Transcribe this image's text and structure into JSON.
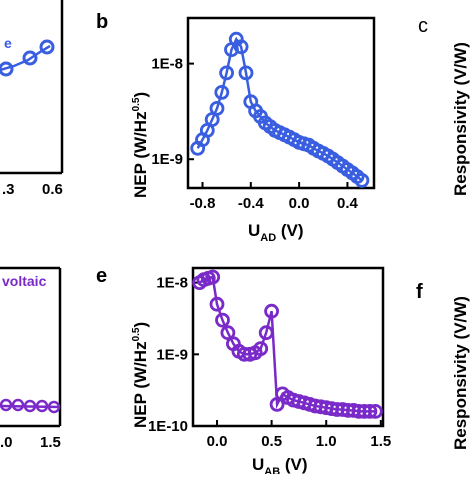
{
  "colors": {
    "blue": "#3a5ee0",
    "purple": "#7a2ac8"
  },
  "panels": {
    "a_fragment": {
      "tick_labels": [
        ".3",
        "0.6"
      ],
      "legend_text": "e"
    },
    "b": {
      "letter": "b"
    },
    "c_fragment": {
      "letter": "c",
      "ylabel": "Responsivity (V/W)"
    },
    "d_fragment": {
      "tick_labels": ".0",
      "tick_right": "1.5",
      "legend_text": "voltaic"
    },
    "e": {
      "letter": "e"
    },
    "f_fragment": {
      "letter": "f",
      "ylabel": "Responsivity (V/W)"
    }
  },
  "chart_data": [
    {
      "type": "line",
      "panel": "b",
      "ylabel_main": "NEP (W/Hz",
      "ylabel_sup": "0.5",
      "ylabel_end": ")",
      "xlabel_main": "U",
      "xlabel_sub": "AD",
      "xlabel_end": " (V)",
      "yscale": "log",
      "xlim": [
        -0.92,
        0.62
      ],
      "ylim": [
        5e-10,
        3e-08
      ],
      "x_ticks": [
        -0.8,
        -0.4,
        0.0,
        0.4
      ],
      "x_tick_labels": [
        "-0.8",
        "-0.4",
        "0.0",
        "0.4"
      ],
      "y_ticks": [
        1e-08,
        1e-09
      ],
      "y_tick_labels": [
        "1E-8",
        "1E-9"
      ],
      "color": "#3a5ee0",
      "x": [
        -0.84,
        -0.8,
        -0.76,
        -0.72,
        -0.68,
        -0.64,
        -0.6,
        -0.56,
        -0.52,
        -0.48,
        -0.44,
        -0.4,
        -0.36,
        -0.32,
        -0.28,
        -0.24,
        -0.2,
        -0.16,
        -0.12,
        -0.08,
        -0.04,
        0.0,
        0.04,
        0.08,
        0.12,
        0.16,
        0.2,
        0.24,
        0.28,
        0.32,
        0.36,
        0.4,
        0.44,
        0.48,
        0.52
      ],
      "y": [
        1.3e-09,
        1.6e-09,
        2e-09,
        2.6e-09,
        3.4e-09,
        5e-09,
        8e-09,
        1.4e-08,
        1.8e-08,
        1.5e-08,
        8e-09,
        4e-09,
        3.2e-09,
        2.8e-09,
        2.4e-09,
        2.2e-09,
        2e-09,
        1.9e-09,
        1.8e-09,
        1.7e-09,
        1.6e-09,
        1.5e-09,
        1.45e-09,
        1.4e-09,
        1.3e-09,
        1.22e-09,
        1.15e-09,
        1.08e-09,
        1e-09,
        9.2e-10,
        8.5e-10,
        7.8e-10,
        7.2e-10,
        6.6e-10,
        6e-10
      ]
    },
    {
      "type": "line",
      "panel": "e",
      "ylabel_main": "NEP (W/Hz",
      "ylabel_sup": "0.5",
      "ylabel_end": ")",
      "xlabel_main": "U",
      "xlabel_sub": "AB",
      "xlabel_end": " (V)",
      "yscale": "log",
      "xlim": [
        -0.22,
        1.52
      ],
      "ylim": [
        1e-10,
        1.6e-08
      ],
      "x_ticks": [
        0.0,
        0.5,
        1.0,
        1.5
      ],
      "x_tick_labels": [
        "0.0",
        "0.5",
        "1.0",
        "1.5"
      ],
      "y_ticks": [
        1e-08,
        1e-09,
        1e-10
      ],
      "y_tick_labels": [
        "1E-8",
        "1E-9",
        "1E-10"
      ],
      "color": "#7a2ac8",
      "x": [
        -0.16,
        -0.12,
        -0.08,
        -0.04,
        0.0,
        0.05,
        0.1,
        0.15,
        0.2,
        0.25,
        0.3,
        0.35,
        0.4,
        0.45,
        0.5,
        0.55,
        0.6,
        0.65,
        0.7,
        0.75,
        0.8,
        0.85,
        0.9,
        0.95,
        1.0,
        1.05,
        1.1,
        1.15,
        1.2,
        1.25,
        1.3,
        1.35,
        1.4,
        1.45
      ],
      "y": [
        1e-08,
        1.1e-08,
        1.15e-08,
        1.2e-08,
        5e-09,
        3e-09,
        2e-09,
        1.4e-09,
        1.1e-09,
        1e-09,
        1e-09,
        1.05e-09,
        1.2e-09,
        2e-09,
        4e-09,
        2e-10,
        2.8e-10,
        2.5e-10,
        2.3e-10,
        2.2e-10,
        2.1e-10,
        2e-10,
        1.9e-10,
        1.85e-10,
        1.8e-10,
        1.75e-10,
        1.7e-10,
        1.7e-10,
        1.65e-10,
        1.65e-10,
        1.6e-10,
        1.6e-10,
        1.6e-10,
        1.6e-10
      ]
    }
  ]
}
